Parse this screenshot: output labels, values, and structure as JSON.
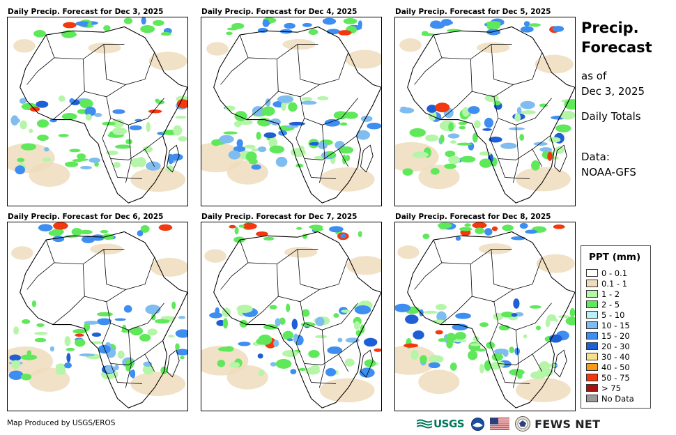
{
  "panels": [
    {
      "title": "Daily Precip. Forecast for Dec 3, 2025"
    },
    {
      "title": "Daily Precip. Forecast for Dec 4, 2025"
    },
    {
      "title": "Daily Precip. Forecast for Dec 5, 2025"
    },
    {
      "title": "Daily Precip. Forecast for Dec 6, 2025"
    },
    {
      "title": "Daily Precip. Forecast for Dec 7, 2025"
    },
    {
      "title": "Daily Precip. Forecast for Dec 8, 2025"
    }
  ],
  "side": {
    "title_line1": "Precip.",
    "title_line2": "Forecast",
    "asof_label": "as of",
    "asof_date": "Dec 3, 2025",
    "totals": "Daily Totals",
    "data_label": "Data:",
    "data_source": "NOAA-GFS"
  },
  "legend": {
    "title": "PPT (mm)",
    "items": [
      {
        "label": "0 - 0.1",
        "color": "#ffffff"
      },
      {
        "label": "0.1 - 1",
        "color": "#efdcbc"
      },
      {
        "label": "1 - 2",
        "color": "#b4f5a8"
      },
      {
        "label": "2 - 5",
        "color": "#5ee85a"
      },
      {
        "label": "5 - 10",
        "color": "#b9f0f4"
      },
      {
        "label": "10 - 15",
        "color": "#7fbcef"
      },
      {
        "label": "15 - 20",
        "color": "#3d8ef0"
      },
      {
        "label": "20 - 30",
        "color": "#1f5fd6"
      },
      {
        "label": "30 - 40",
        "color": "#f7e08a"
      },
      {
        "label": "40 - 50",
        "color": "#f59a1a"
      },
      {
        "label": "50 - 75",
        "color": "#f2380f"
      },
      {
        "label": "> 75",
        "color": "#a8120c"
      },
      {
        "label": "No Data",
        "color": "#9a9a9a"
      }
    ]
  },
  "footer": {
    "credit": "Map Produced by USGS/EROS",
    "usgs": "USGS",
    "fews": "FEWS NET"
  }
}
